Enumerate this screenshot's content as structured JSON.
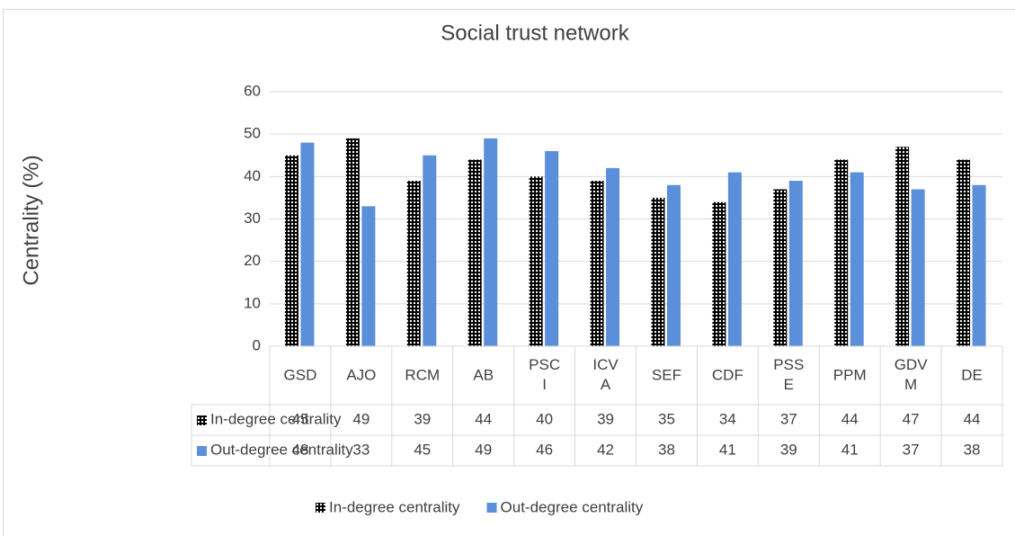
{
  "chart_data": {
    "type": "bar",
    "title": "Social trust network",
    "y_label": "Centrality (%)",
    "categories": [
      "GSD",
      "AJO",
      "RCM",
      "AB",
      "PSCI",
      "ICVA",
      "SEF",
      "CDF",
      "PSSE",
      "PPM",
      "GDVM",
      "DE"
    ],
    "series": [
      {
        "name": "In-degree centrality",
        "color": "#000000",
        "pattern": "dots",
        "values": [
          45,
          49,
          39,
          44,
          40,
          39,
          35,
          34,
          37,
          44,
          47,
          44
        ]
      },
      {
        "name": "Out-degree centrality",
        "color": "#5b8fd9",
        "values": [
          48,
          33,
          45,
          49,
          46,
          42,
          38,
          41,
          39,
          41,
          37,
          38
        ]
      }
    ],
    "ylim": [
      0,
      60
    ],
    "yticks": [
      0,
      10,
      20,
      30,
      40,
      50,
      60
    ],
    "grid": true,
    "data_table": true,
    "legend": "bottom"
  }
}
